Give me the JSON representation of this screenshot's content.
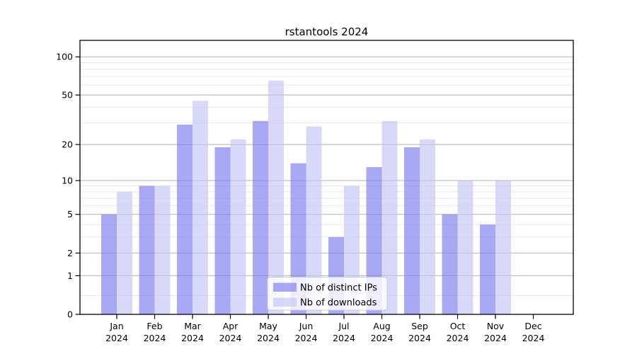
{
  "figure": {
    "title": "rstantools 2024",
    "background": "#ffffff"
  },
  "chart_data": {
    "type": "bar",
    "title": "rstantools 2024",
    "categories": [
      "Jan 2024",
      "Feb 2024",
      "Mar 2024",
      "Apr 2024",
      "May 2024",
      "Jun 2024",
      "Jul 2024",
      "Aug 2024",
      "Sep 2024",
      "Oct 2024",
      "Nov 2024",
      "Dec 2024"
    ],
    "x_tick_line1": [
      "Jan",
      "Feb",
      "Mar",
      "Apr",
      "May",
      "Jun",
      "Jul",
      "Aug",
      "Sep",
      "Oct",
      "Nov",
      "Dec"
    ],
    "x_tick_line2": "2024",
    "series": [
      {
        "name": "Nb of distinct IPs",
        "color": "rgba(127,127,240,0.68)",
        "values": [
          5,
          9,
          29,
          19,
          31,
          14,
          3,
          13,
          19,
          5,
          4,
          0
        ]
      },
      {
        "name": "Nb of downloads",
        "color": "rgba(198,198,245,0.68)",
        "values": [
          8,
          9,
          45,
          22,
          65,
          28,
          9,
          31,
          22,
          10,
          10,
          0
        ]
      }
    ],
    "xlabel": "",
    "ylabel": "",
    "yscale": "log1p",
    "ylim": [
      0,
      135
    ],
    "y_major_ticks": [
      0,
      1,
      2,
      5,
      10,
      20,
      50,
      100
    ],
    "y_minor_gridlines": [
      0.4,
      3,
      4,
      6,
      7,
      8,
      9,
      30,
      40,
      60,
      70,
      80,
      90
    ],
    "grid": true,
    "legend_position": "lower center"
  },
  "legend": {
    "items": [
      "Nb of distinct IPs",
      "Nb of downloads"
    ]
  },
  "colors": {
    "bar_ips": "rgba(127,127,240,0.68)",
    "bar_downloads": "rgba(198,198,245,0.68)",
    "grid_major": "#b2b2b2",
    "grid_minor": "#e8e8e8",
    "axis": "#000000",
    "legend_border": "#cccccc",
    "legend_bg": "rgba(255,255,255,0.8)"
  }
}
